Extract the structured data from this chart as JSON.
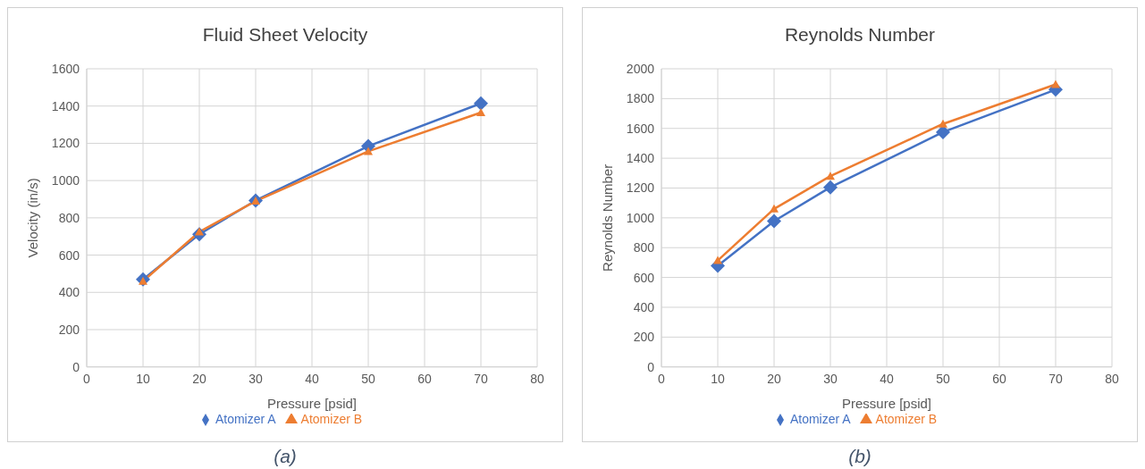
{
  "chart_data": [
    {
      "type": "line",
      "title": "Fluid Sheet Velocity",
      "xlabel": "Pressure [psid]",
      "ylabel": "Velocity (in/s)",
      "x": [
        10,
        20,
        30,
        50,
        70
      ],
      "xlim": [
        0,
        80
      ],
      "xticks": [
        0,
        10,
        20,
        30,
        40,
        50,
        60,
        70,
        80
      ],
      "ylim": [
        0,
        1600
      ],
      "yticks": [
        0,
        200,
        400,
        600,
        800,
        1000,
        1200,
        1400,
        1600
      ],
      "grid": true,
      "legend": "bottom",
      "annotations": [
        "(a)"
      ],
      "series": [
        {
          "name": "Atomizer A",
          "color": "#4472c4",
          "marker": "diamond",
          "values": [
            470,
            712,
            893,
            1185,
            1414
          ]
        },
        {
          "name": "Atomizer B",
          "color": "#ed7d31",
          "marker": "triangle",
          "values": [
            460,
            725,
            890,
            1157,
            1365
          ]
        }
      ]
    },
    {
      "type": "line",
      "title": "Reynolds Number",
      "xlabel": "Pressure [psid]",
      "ylabel": "Reynolds Number",
      "x": [
        10,
        20,
        30,
        50,
        70
      ],
      "xlim": [
        0,
        80
      ],
      "xticks": [
        0,
        10,
        20,
        30,
        40,
        50,
        60,
        70,
        80
      ],
      "ylim": [
        0,
        2000
      ],
      "yticks": [
        0,
        200,
        400,
        600,
        800,
        1000,
        1200,
        1400,
        1600,
        1800,
        2000
      ],
      "grid": true,
      "legend": "bottom",
      "annotations": [
        "(b)"
      ],
      "series": [
        {
          "name": "Atomizer A",
          "color": "#4472c4",
          "marker": "diamond",
          "values": [
            678,
            978,
            1205,
            1575,
            1860
          ]
        },
        {
          "name": "Atomizer B",
          "color": "#ed7d31",
          "marker": "triangle",
          "values": [
            714,
            1060,
            1280,
            1630,
            1895
          ]
        }
      ]
    }
  ]
}
